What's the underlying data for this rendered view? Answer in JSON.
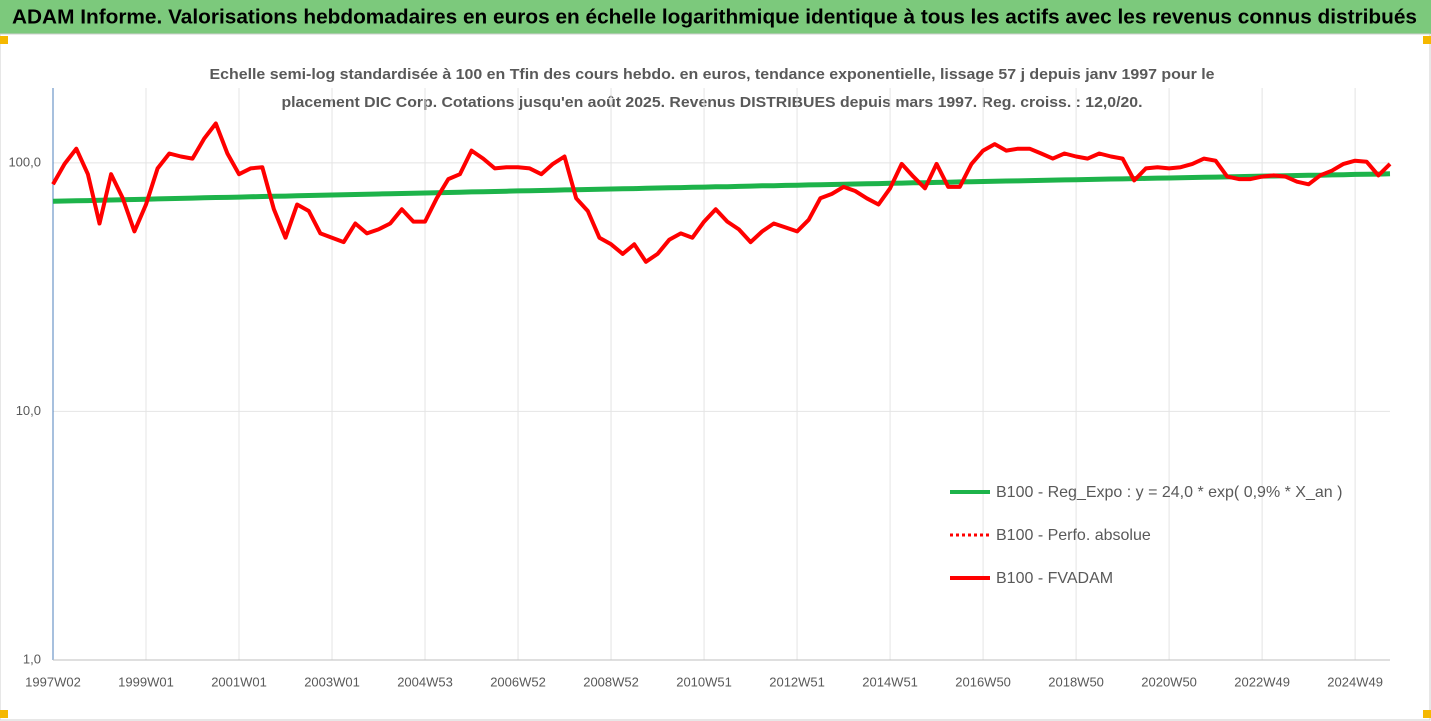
{
  "chart_data": {
    "type": "line",
    "title": "ADAM Informe. Valorisations hebdomadaires en euros en échelle logarithmique identique à tous les actifs avec les revenus connus distribués",
    "subtitle": [
      "Echelle semi-log standardisée à 100 en Tfin des cours hebdo. en euros, tendance exponentielle, lissage 57 j depuis janv 1997 pour le",
      "placement DIC Corp. Cotations jusqu'en août 2025. Revenus DISTRIBUES depuis mars 1997. Reg. croiss. : 12,0/20."
    ],
    "categories": [
      "1997W02",
      null,
      null,
      null,
      null,
      null,
      null,
      null,
      "1999W01",
      null,
      null,
      null,
      null,
      null,
      null,
      null,
      "2001W01",
      null,
      null,
      null,
      null,
      null,
      null,
      null,
      "2003W01",
      null,
      null,
      null,
      null,
      null,
      null,
      null,
      "2004W53",
      null,
      null,
      null,
      null,
      null,
      null,
      null,
      "2006W52",
      null,
      null,
      null,
      null,
      null,
      null,
      null,
      "2008W52",
      null,
      null,
      null,
      null,
      null,
      null,
      null,
      "2010W51",
      null,
      null,
      null,
      null,
      null,
      null,
      null,
      "2012W51",
      null,
      null,
      null,
      null,
      null,
      null,
      null,
      "2014W51",
      null,
      null,
      null,
      null,
      null,
      null,
      null,
      "2016W50",
      null,
      null,
      null,
      null,
      null,
      null,
      null,
      "2018W50",
      null,
      null,
      null,
      null,
      null,
      null,
      null,
      "2020W50",
      null,
      null,
      null,
      null,
      null,
      null,
      null,
      "2022W49",
      null,
      null,
      null,
      null,
      null,
      null,
      null,
      "2024W49",
      null,
      null,
      null
    ],
    "series": [
      {
        "name": "B100 - Reg_Expo : y = 24,0 * exp( 0,9% *  X_an )",
        "color": "#1db34a",
        "width": 5,
        "dashed": false,
        "values": [
          70.0,
          70.2,
          70.4,
          70.5,
          70.7,
          70.9,
          71.1,
          71.2,
          71.4,
          71.6,
          71.8,
          71.9,
          72.1,
          72.3,
          72.5,
          72.6,
          72.8,
          73.0,
          73.2,
          73.4,
          73.5,
          73.7,
          73.9,
          74.1,
          74.2,
          74.4,
          74.6,
          74.8,
          74.9,
          75.1,
          75.3,
          75.5,
          75.6,
          75.8,
          76.0,
          76.2,
          76.4,
          76.5,
          76.7,
          76.9,
          77.1,
          77.2,
          77.4,
          77.6,
          77.8,
          77.9,
          78.1,
          78.3,
          78.5,
          78.6,
          78.8,
          79.0,
          79.2,
          79.4,
          79.5,
          79.7,
          79.9,
          80.1,
          80.2,
          80.4,
          80.6,
          80.8,
          80.9,
          81.1,
          81.3,
          81.5,
          81.6,
          81.8,
          82.0,
          82.2,
          82.4,
          82.5,
          82.7,
          82.9,
          83.1,
          83.2,
          83.4,
          83.6,
          83.8,
          83.9,
          84.1,
          84.3,
          84.5,
          84.6,
          84.8,
          85.0,
          85.2,
          85.4,
          85.5,
          85.7,
          85.9,
          86.1,
          86.2,
          86.4,
          86.6,
          86.8,
          86.9,
          87.1,
          87.3,
          87.5,
          87.6,
          87.8,
          88.0,
          88.2,
          88.4,
          88.5,
          88.7,
          88.9,
          89.1,
          89.2,
          89.4,
          89.6,
          89.8,
          89.9,
          90.1,
          90.3
        ]
      },
      {
        "name": "B100 - Perfo. absolue",
        "color": "#ff0000",
        "width": 2,
        "dashed": true,
        "values": [
          82,
          99,
          114,
          90,
          57,
          90,
          72,
          53,
          68,
          95,
          109,
          106,
          104,
          125,
          144,
          109,
          90,
          95,
          96,
          65,
          50,
          68,
          64,
          52,
          50,
          48,
          57,
          52,
          54,
          57,
          65,
          58,
          58,
          72,
          86,
          90,
          112,
          104,
          95,
          96,
          96,
          95,
          90,
          99,
          106,
          72,
          64,
          50,
          47,
          43,
          47,
          40,
          43,
          49,
          52,
          50,
          58,
          65,
          58,
          54,
          48,
          53,
          57,
          55,
          53,
          59,
          72,
          75,
          80,
          77,
          72,
          68,
          79,
          99,
          88,
          79,
          99,
          80,
          80,
          99,
          112,
          119,
          112,
          114,
          114,
          109,
          104,
          109,
          106,
          104,
          109,
          106,
          104,
          85,
          95,
          96,
          95,
          96,
          99,
          104,
          102,
          88,
          86,
          86,
          88,
          89,
          88,
          84,
          82,
          89,
          93,
          99,
          102,
          101,
          89,
          99
        ]
      },
      {
        "name": "B100 - FVADAM",
        "color": "#ff0000",
        "width": 4,
        "dashed": false,
        "values": [
          82,
          99,
          114,
          90,
          57,
          90,
          72,
          53,
          68,
          95,
          109,
          106,
          104,
          125,
          144,
          109,
          90,
          95,
          96,
          65,
          50,
          68,
          64,
          52,
          50,
          48,
          57,
          52,
          54,
          57,
          65,
          58,
          58,
          72,
          86,
          90,
          112,
          104,
          95,
          96,
          96,
          95,
          90,
          99,
          106,
          72,
          64,
          50,
          47,
          43,
          47,
          40,
          43,
          49,
          52,
          50,
          58,
          65,
          58,
          54,
          48,
          53,
          57,
          55,
          53,
          59,
          72,
          75,
          80,
          77,
          72,
          68,
          79,
          99,
          88,
          79,
          99,
          80,
          80,
          99,
          112,
          119,
          112,
          114,
          114,
          109,
          104,
          109,
          106,
          104,
          109,
          106,
          104,
          85,
          95,
          96,
          95,
          96,
          99,
          104,
          102,
          88,
          86,
          86,
          88,
          89,
          88,
          84,
          82,
          89,
          93,
          99,
          102,
          101,
          89,
          99
        ]
      }
    ],
    "ylim": [
      1,
      200
    ],
    "yticks": [
      {
        "value": 1,
        "label": "1,0"
      },
      {
        "value": 10,
        "label": "10,0"
      },
      {
        "value": 100,
        "label": "100,0"
      }
    ],
    "log": true,
    "grid": true,
    "legend": "right"
  }
}
